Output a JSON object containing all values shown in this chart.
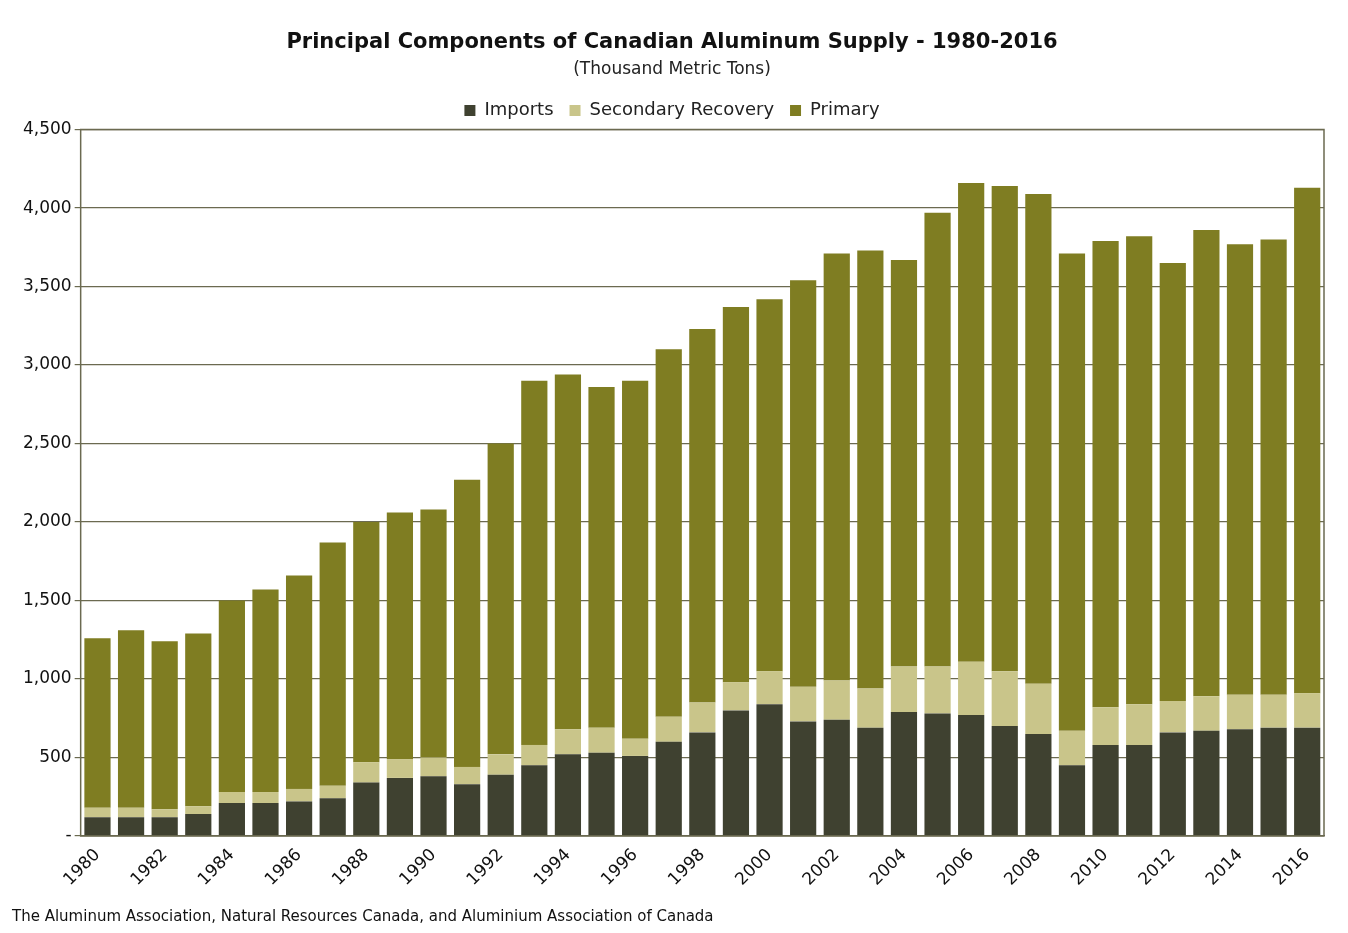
{
  "chart_data": {
    "type": "bar",
    "title": "Principal Components of Canadian Aluminum Supply - 1980-2016",
    "subtitle": "(Thousand Metric Tons)",
    "categories": [
      "1980",
      null,
      "1982",
      null,
      "1984",
      null,
      "1986",
      null,
      "1988",
      null,
      "1990",
      null,
      "1992",
      null,
      "1994",
      null,
      "1996",
      null,
      "1998",
      null,
      "2000",
      null,
      "2002",
      null,
      "2004",
      null,
      "2006",
      null,
      "2008",
      null,
      "2010",
      null,
      "2012",
      null,
      "2014",
      null,
      "2016"
    ],
    "stacked": true,
    "series": [
      {
        "name": "Imports",
        "color": "#3f4130",
        "values": [
          120,
          120,
          120,
          140,
          210,
          210,
          220,
          240,
          340,
          370,
          380,
          330,
          390,
          450,
          520,
          530,
          510,
          600,
          660,
          800,
          840,
          730,
          740,
          690,
          790,
          780,
          770,
          700,
          650,
          450,
          580,
          580,
          660,
          670,
          680,
          690,
          690
        ]
      },
      {
        "name": "Secondary Recovery",
        "color": "#c9c58a",
        "values": [
          60,
          60,
          50,
          50,
          70,
          70,
          80,
          80,
          130,
          120,
          120,
          110,
          130,
          130,
          160,
          160,
          110,
          160,
          190,
          180,
          210,
          220,
          250,
          250,
          290,
          300,
          340,
          350,
          320,
          220,
          240,
          260,
          200,
          220,
          220,
          210,
          220
        ]
      },
      {
        "name": "Primary",
        "color": "#7f7d22",
        "values": [
          1080,
          1130,
          1070,
          1100,
          1220,
          1290,
          1360,
          1550,
          1530,
          1570,
          1580,
          1830,
          1980,
          2320,
          2260,
          2170,
          2280,
          2340,
          2380,
          2390,
          2370,
          2590,
          2720,
          2790,
          2590,
          2890,
          3050,
          3090,
          3120,
          3040,
          2970,
          2980,
          2790,
          2970,
          2870,
          2900,
          3220
        ]
      }
    ],
    "ylim": [
      0,
      4500
    ],
    "yticks": [
      {
        "value": 0,
        "label": "-"
      },
      500,
      {
        "value": 1000,
        "label": "1,000"
      },
      {
        "value": 1500,
        "label": "1,500"
      },
      {
        "value": 2000,
        "label": "2,000"
      },
      {
        "value": 2500,
        "label": "2,500"
      },
      {
        "value": 3000,
        "label": "3,000"
      },
      {
        "value": 3500,
        "label": "3,500"
      },
      {
        "value": 4000,
        "label": "4,000"
      },
      {
        "value": 4500,
        "label": "4,500"
      }
    ],
    "grid": "y",
    "legend": "top",
    "annotations": [
      "The Aluminum Association, Natural Resources Canada, and Aluminium Association of Canada"
    ]
  }
}
